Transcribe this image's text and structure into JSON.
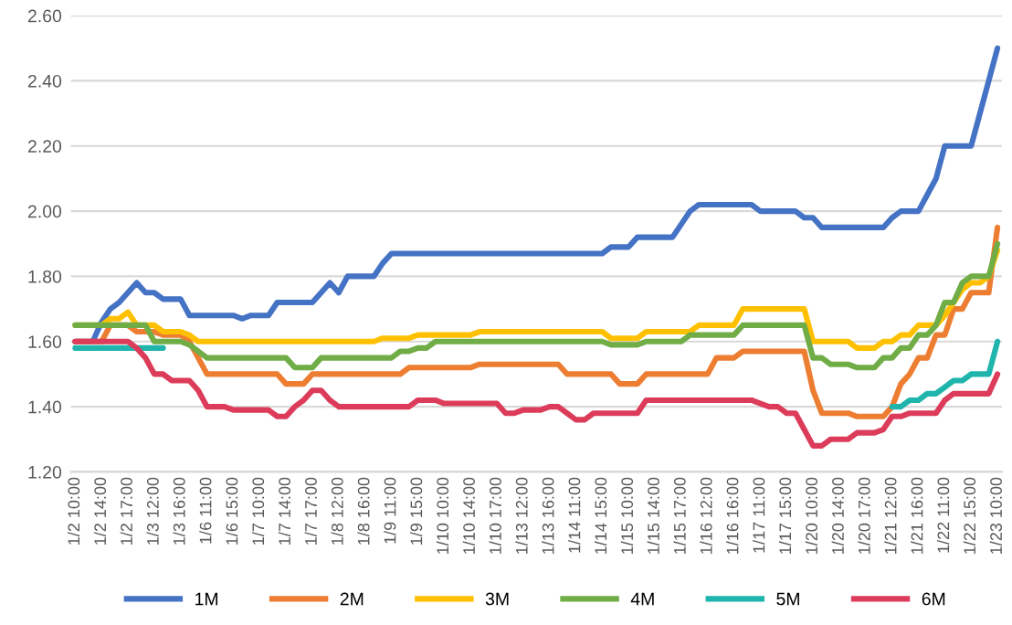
{
  "chart_data": {
    "type": "line",
    "categories": [
      "1/2 10:00",
      null,
      null,
      "1/2 14:00",
      null,
      null,
      "1/2 17:00",
      null,
      null,
      "1/3 12:00",
      null,
      null,
      "1/3 16:00",
      null,
      null,
      "1/6 11:00",
      null,
      null,
      "1/6 15:00",
      null,
      null,
      "1/7 10:00",
      null,
      null,
      "1/7 14:00",
      null,
      null,
      "1/7 17:00",
      null,
      null,
      "1/8 12:00",
      null,
      null,
      "1/8 16:00",
      null,
      null,
      "1/9 11:00",
      null,
      null,
      "1/9 15:00",
      null,
      null,
      "1/10 10:00",
      null,
      null,
      "1/10 14:00",
      null,
      null,
      "1/10 17:00",
      null,
      null,
      "1/13 12:00",
      null,
      null,
      "1/13 16:00",
      null,
      null,
      "1/14 11:00",
      null,
      null,
      "1/14 15:00",
      null,
      null,
      "1/15 10:00",
      null,
      null,
      "1/15 14:00",
      null,
      null,
      "1/15 17:00",
      null,
      null,
      "1/16 12:00",
      null,
      null,
      "1/16 16:00",
      null,
      null,
      "1/17 11:00",
      null,
      null,
      "1/17 15:00",
      null,
      null,
      "1/20 10:00",
      null,
      null,
      "1/20 14:00",
      null,
      null,
      "1/20 17:00",
      null,
      null,
      "1/21 12:00",
      null,
      null,
      "1/21 16:00",
      null,
      null,
      "1/22 11:00",
      null,
      null,
      "1/22 15:00",
      null,
      null,
      "1/23 10:00"
    ],
    "series": [
      {
        "name": "1M",
        "color": "#4472c4",
        "values": [
          1.6,
          1.6,
          1.6,
          1.66,
          1.7,
          1.72,
          1.75,
          1.78,
          1.75,
          1.75,
          1.73,
          1.73,
          1.73,
          1.68,
          1.68,
          1.68,
          1.68,
          1.68,
          1.68,
          1.67,
          1.68,
          1.68,
          1.68,
          1.72,
          1.72,
          1.72,
          1.72,
          1.72,
          1.75,
          1.78,
          1.75,
          1.8,
          1.8,
          1.8,
          1.8,
          1.84,
          1.87,
          1.87,
          1.87,
          1.87,
          1.87,
          1.87,
          1.87,
          1.87,
          1.87,
          1.87,
          1.87,
          1.87,
          1.87,
          1.87,
          1.87,
          1.87,
          1.87,
          1.87,
          1.87,
          1.87,
          1.87,
          1.87,
          1.87,
          1.87,
          1.87,
          1.89,
          1.89,
          1.89,
          1.92,
          1.92,
          1.92,
          1.92,
          1.92,
          1.96,
          2.0,
          2.02,
          2.02,
          2.02,
          2.02,
          2.02,
          2.02,
          2.02,
          2.0,
          2.0,
          2.0,
          2.0,
          2.0,
          1.98,
          1.98,
          1.95,
          1.95,
          1.95,
          1.95,
          1.95,
          1.95,
          1.95,
          1.95,
          1.98,
          2.0,
          2.0,
          2.0,
          2.05,
          2.1,
          2.2,
          2.2,
          2.2,
          2.2,
          2.3,
          2.4,
          2.5
        ]
      },
      {
        "name": "2M",
        "color": "#ed7d31",
        "values": [
          1.6,
          1.6,
          1.6,
          1.6,
          1.65,
          1.65,
          1.65,
          1.63,
          1.63,
          1.63,
          1.62,
          1.62,
          1.62,
          1.6,
          1.55,
          1.5,
          1.5,
          1.5,
          1.5,
          1.5,
          1.5,
          1.5,
          1.5,
          1.5,
          1.47,
          1.47,
          1.47,
          1.5,
          1.5,
          1.5,
          1.5,
          1.5,
          1.5,
          1.5,
          1.5,
          1.5,
          1.5,
          1.5,
          1.52,
          1.52,
          1.52,
          1.52,
          1.52,
          1.52,
          1.52,
          1.52,
          1.53,
          1.53,
          1.53,
          1.53,
          1.53,
          1.53,
          1.53,
          1.53,
          1.53,
          1.53,
          1.5,
          1.5,
          1.5,
          1.5,
          1.5,
          1.5,
          1.47,
          1.47,
          1.47,
          1.5,
          1.5,
          1.5,
          1.5,
          1.5,
          1.5,
          1.5,
          1.5,
          1.55,
          1.55,
          1.55,
          1.57,
          1.57,
          1.57,
          1.57,
          1.57,
          1.57,
          1.57,
          1.57,
          1.45,
          1.38,
          1.38,
          1.38,
          1.38,
          1.37,
          1.37,
          1.37,
          1.37,
          1.4,
          1.47,
          1.5,
          1.55,
          1.55,
          1.62,
          1.62,
          1.7,
          1.7,
          1.75,
          1.75,
          1.75,
          1.95
        ]
      },
      {
        "name": "3M",
        "color": "#ffc000",
        "values": [
          1.65,
          1.65,
          1.65,
          1.65,
          1.67,
          1.67,
          1.69,
          1.65,
          1.65,
          1.65,
          1.63,
          1.63,
          1.63,
          1.62,
          1.6,
          1.6,
          1.6,
          1.6,
          1.6,
          1.6,
          1.6,
          1.6,
          1.6,
          1.6,
          1.6,
          1.6,
          1.6,
          1.6,
          1.6,
          1.6,
          1.6,
          1.6,
          1.6,
          1.6,
          1.6,
          1.61,
          1.61,
          1.61,
          1.61,
          1.62,
          1.62,
          1.62,
          1.62,
          1.62,
          1.62,
          1.62,
          1.63,
          1.63,
          1.63,
          1.63,
          1.63,
          1.63,
          1.63,
          1.63,
          1.63,
          1.63,
          1.63,
          1.63,
          1.63,
          1.63,
          1.63,
          1.61,
          1.61,
          1.61,
          1.61,
          1.63,
          1.63,
          1.63,
          1.63,
          1.63,
          1.63,
          1.65,
          1.65,
          1.65,
          1.65,
          1.65,
          1.7,
          1.7,
          1.7,
          1.7,
          1.7,
          1.7,
          1.7,
          1.7,
          1.6,
          1.6,
          1.6,
          1.6,
          1.6,
          1.58,
          1.58,
          1.58,
          1.6,
          1.6,
          1.62,
          1.62,
          1.65,
          1.65,
          1.65,
          1.68,
          1.72,
          1.76,
          1.78,
          1.78,
          1.8,
          1.88
        ]
      },
      {
        "name": "4M",
        "color": "#70ad47",
        "values": [
          1.65,
          1.65,
          1.65,
          1.65,
          1.65,
          1.65,
          1.65,
          1.65,
          1.65,
          1.6,
          1.6,
          1.6,
          1.6,
          1.59,
          1.57,
          1.55,
          1.55,
          1.55,
          1.55,
          1.55,
          1.55,
          1.55,
          1.55,
          1.55,
          1.55,
          1.52,
          1.52,
          1.52,
          1.55,
          1.55,
          1.55,
          1.55,
          1.55,
          1.55,
          1.55,
          1.55,
          1.55,
          1.57,
          1.57,
          1.58,
          1.58,
          1.6,
          1.6,
          1.6,
          1.6,
          1.6,
          1.6,
          1.6,
          1.6,
          1.6,
          1.6,
          1.6,
          1.6,
          1.6,
          1.6,
          1.6,
          1.6,
          1.6,
          1.6,
          1.6,
          1.6,
          1.59,
          1.59,
          1.59,
          1.59,
          1.6,
          1.6,
          1.6,
          1.6,
          1.6,
          1.62,
          1.62,
          1.62,
          1.62,
          1.62,
          1.62,
          1.65,
          1.65,
          1.65,
          1.65,
          1.65,
          1.65,
          1.65,
          1.65,
          1.55,
          1.55,
          1.53,
          1.53,
          1.53,
          1.52,
          1.52,
          1.52,
          1.55,
          1.55,
          1.58,
          1.58,
          1.62,
          1.62,
          1.65,
          1.72,
          1.72,
          1.78,
          1.8,
          1.8,
          1.8,
          1.9
        ]
      },
      {
        "name": "5M",
        "color": "#1fb5ad",
        "values": [
          1.58,
          1.58,
          1.58,
          1.58,
          1.58,
          1.58,
          1.58,
          1.58,
          1.58,
          1.58,
          1.58,
          null,
          null,
          null,
          null,
          null,
          null,
          null,
          null,
          null,
          null,
          null,
          null,
          null,
          null,
          null,
          null,
          null,
          null,
          null,
          null,
          null,
          null,
          null,
          null,
          null,
          null,
          null,
          null,
          null,
          null,
          null,
          null,
          null,
          null,
          null,
          null,
          null,
          null,
          null,
          null,
          null,
          null,
          null,
          null,
          null,
          null,
          null,
          null,
          null,
          null,
          null,
          null,
          null,
          null,
          null,
          null,
          null,
          null,
          null,
          null,
          null,
          null,
          null,
          null,
          null,
          null,
          null,
          null,
          null,
          null,
          null,
          null,
          null,
          null,
          null,
          null,
          null,
          null,
          null,
          null,
          null,
          null,
          1.4,
          1.4,
          1.42,
          1.42,
          1.44,
          1.44,
          1.46,
          1.48,
          1.48,
          1.5,
          1.5,
          1.5,
          1.6
        ]
      },
      {
        "name": "6M",
        "color": "#dc3c5a",
        "values": [
          1.6,
          1.6,
          1.6,
          1.6,
          1.6,
          1.6,
          1.6,
          1.58,
          1.55,
          1.5,
          1.5,
          1.48,
          1.48,
          1.48,
          1.45,
          1.4,
          1.4,
          1.4,
          1.39,
          1.39,
          1.39,
          1.39,
          1.39,
          1.37,
          1.37,
          1.4,
          1.42,
          1.45,
          1.45,
          1.42,
          1.4,
          1.4,
          1.4,
          1.4,
          1.4,
          1.4,
          1.4,
          1.4,
          1.4,
          1.42,
          1.42,
          1.42,
          1.41,
          1.41,
          1.41,
          1.41,
          1.41,
          1.41,
          1.41,
          1.38,
          1.38,
          1.39,
          1.39,
          1.39,
          1.4,
          1.4,
          1.38,
          1.36,
          1.36,
          1.38,
          1.38,
          1.38,
          1.38,
          1.38,
          1.38,
          1.42,
          1.42,
          1.42,
          1.42,
          1.42,
          1.42,
          1.42,
          1.42,
          1.42,
          1.42,
          1.42,
          1.42,
          1.42,
          1.41,
          1.4,
          1.4,
          1.38,
          1.38,
          1.33,
          1.28,
          1.28,
          1.3,
          1.3,
          1.3,
          1.32,
          1.32,
          1.32,
          1.33,
          1.37,
          1.37,
          1.38,
          1.38,
          1.38,
          1.38,
          1.42,
          1.44,
          1.44,
          1.44,
          1.44,
          1.44,
          1.5
        ]
      }
    ],
    "ylim": [
      1.2,
      2.6
    ],
    "yticks": [
      {
        "value": 1.2,
        "label": "1.20"
      },
      {
        "value": 1.4,
        "label": "1.40"
      },
      {
        "value": 1.6,
        "label": "1.60"
      },
      {
        "value": 1.8,
        "label": "1.80"
      },
      {
        "value": 2.0,
        "label": "2.00"
      },
      {
        "value": 2.2,
        "label": "2.20"
      },
      {
        "value": 2.4,
        "label": "2.40"
      },
      {
        "value": 2.6,
        "label": "2.60"
      }
    ],
    "grid": "y",
    "legend": "bottom",
    "marker": "none",
    "line_style": "solid"
  }
}
